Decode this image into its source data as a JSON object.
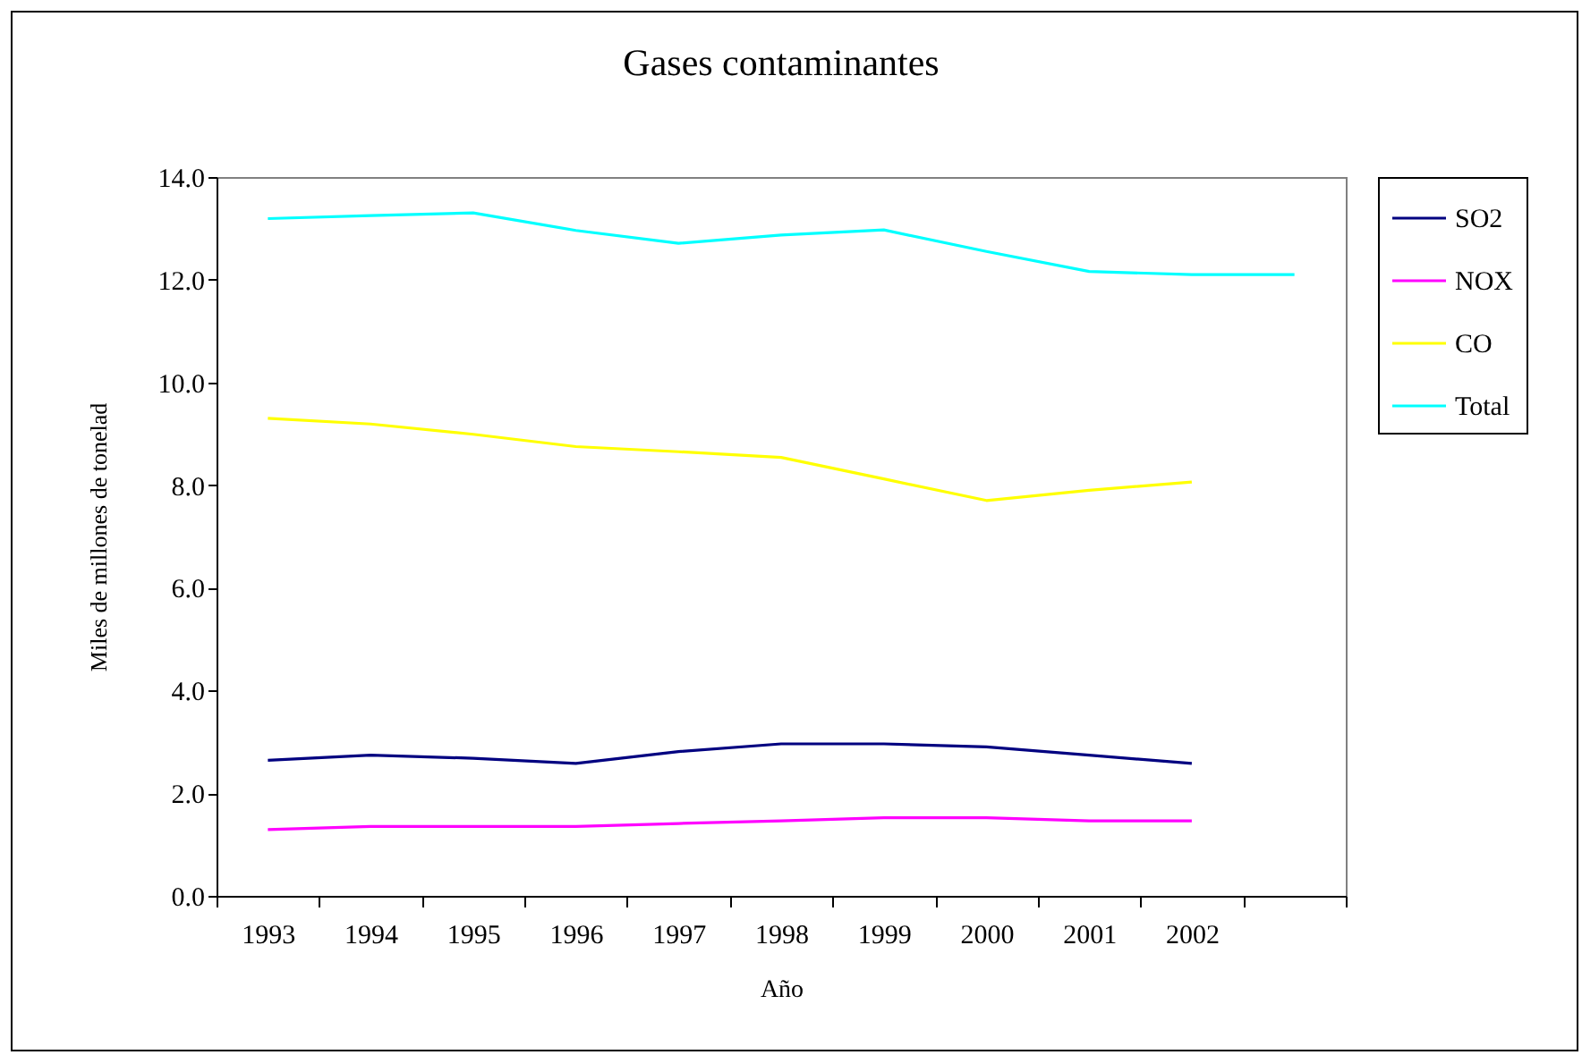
{
  "chart_data": {
    "type": "line",
    "title": "Gases contaminantes",
    "xlabel": "Año",
    "ylabel": "Miles de millones de tonelad",
    "categories": [
      "1993",
      "1994",
      "1995",
      "1996",
      "1997",
      "1998",
      "1999",
      "2000",
      "2001",
      "2002",
      null
    ],
    "series": [
      {
        "name": "SO2",
        "color": "#000080",
        "values": [
          2.64,
          2.74,
          2.68,
          2.58,
          2.81,
          2.96,
          2.96,
          2.9,
          2.74,
          2.58,
          null
        ]
      },
      {
        "name": "NOX",
        "color": "#ff00ff",
        "values": [
          1.29,
          1.35,
          1.35,
          1.35,
          1.41,
          1.46,
          1.52,
          1.52,
          1.46,
          1.46,
          null
        ]
      },
      {
        "name": "CO",
        "color": "#ffff00",
        "values": [
          9.3,
          9.19,
          8.99,
          8.75,
          8.65,
          8.54,
          8.12,
          7.7,
          7.9,
          8.06,
          null
        ]
      },
      {
        "name": "Total",
        "color": "#00ffff",
        "values": [
          13.19,
          13.25,
          13.3,
          12.96,
          12.71,
          12.87,
          12.97,
          12.55,
          12.16,
          12.1,
          12.1
        ]
      }
    ],
    "ylim": [
      0,
      14
    ],
    "yticks": [
      {
        "value": 0,
        "label": "0.0"
      },
      {
        "value": 2,
        "label": "2.0"
      },
      {
        "value": 4,
        "label": "4.0"
      },
      {
        "value": 6,
        "label": "6.0"
      },
      {
        "value": 8,
        "label": "8.0"
      },
      {
        "value": 10,
        "label": "10.0"
      },
      {
        "value": 12,
        "label": "12.0"
      },
      {
        "value": 14,
        "label": "14.0"
      }
    ],
    "grid": false,
    "legend": "right",
    "marker": "none",
    "line_style": "solid"
  }
}
